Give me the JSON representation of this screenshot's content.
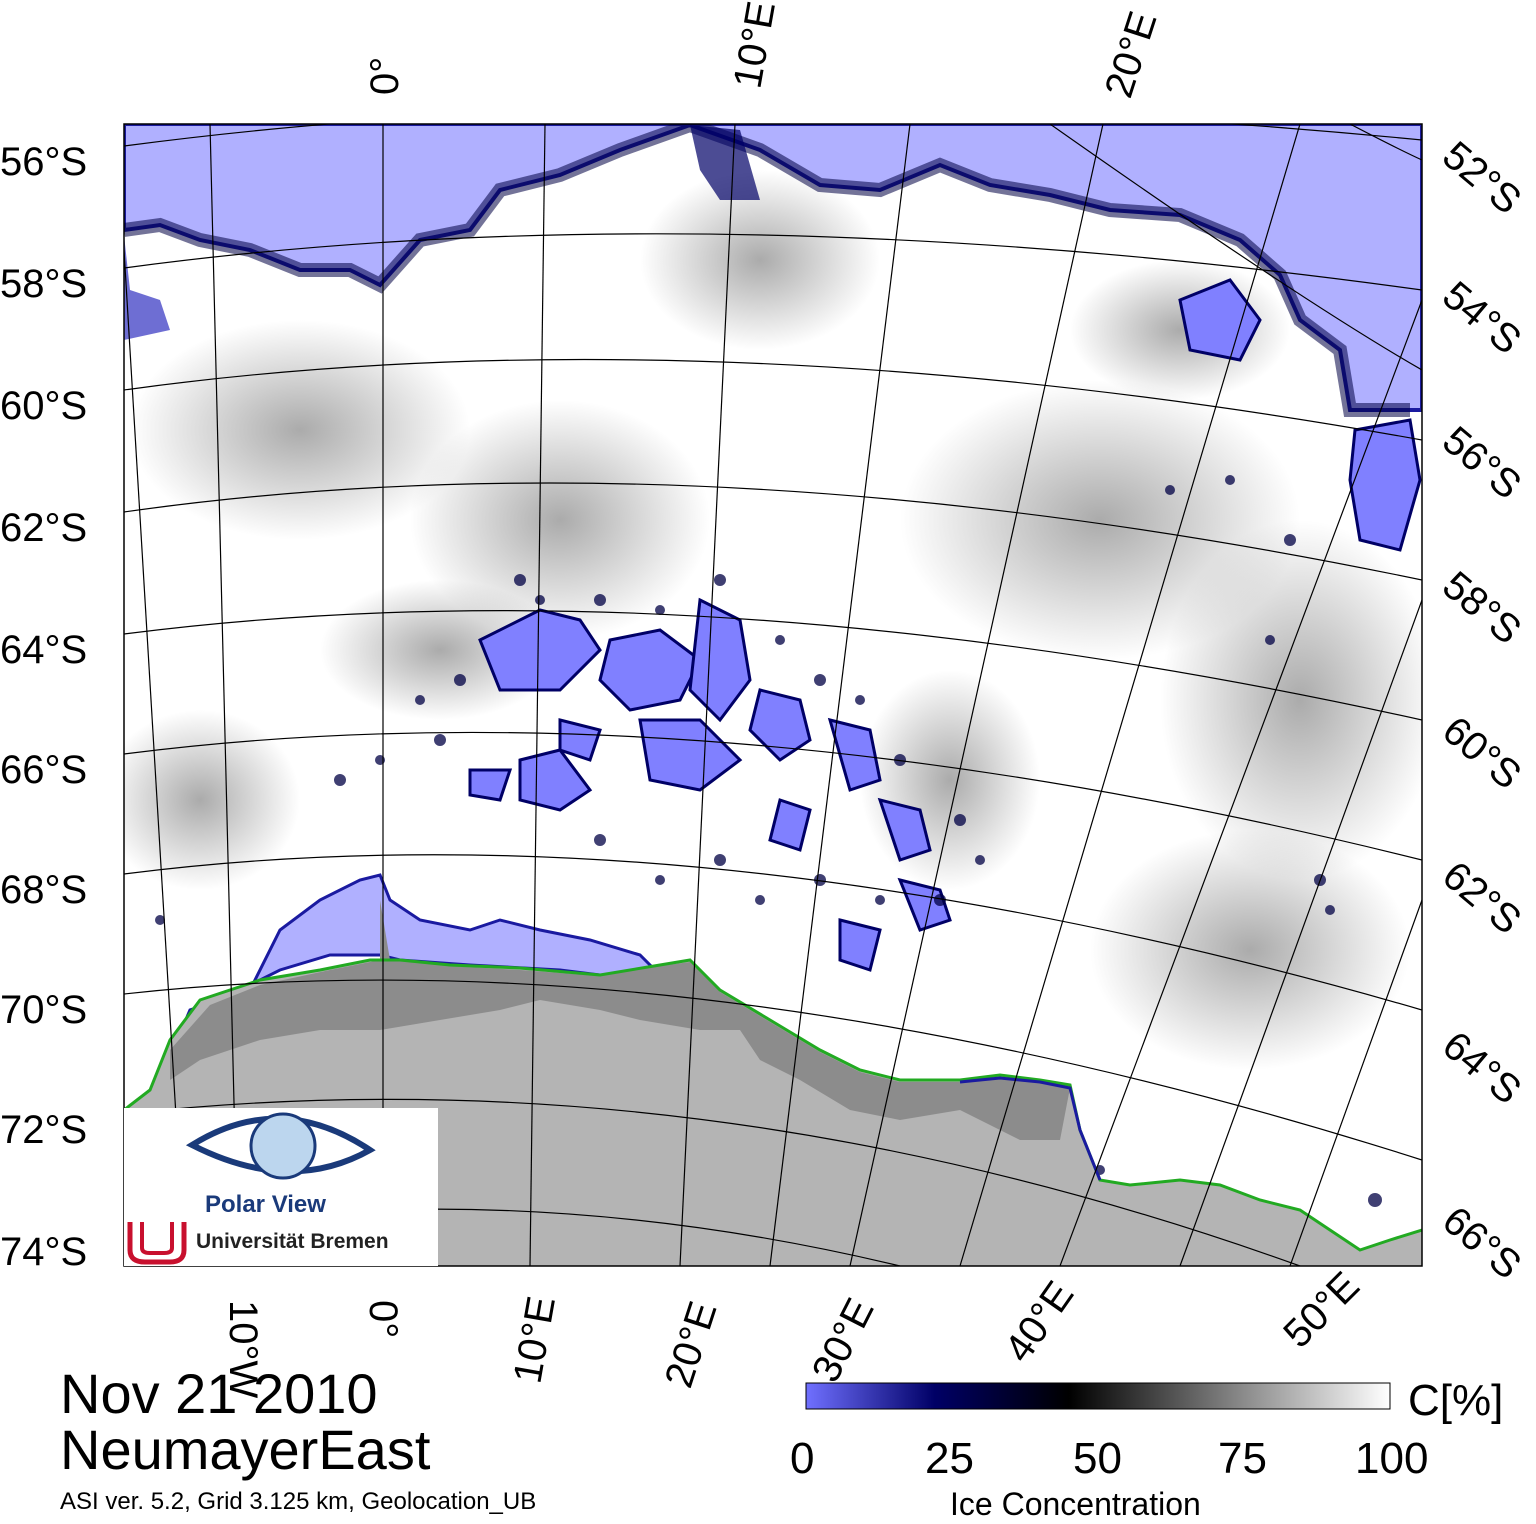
{
  "map": {
    "lat_labels_left": [
      "56°S",
      "58°S",
      "60°S",
      "62°S",
      "64°S",
      "66°S",
      "68°S",
      "70°S",
      "72°S",
      "74°S"
    ],
    "lat_labels_right": [
      "52°S",
      "54°S",
      "56°S",
      "58°S",
      "60°S",
      "62°S",
      "64°S",
      "66°S"
    ],
    "lon_labels_top": [
      "0°",
      "10°E",
      "20°E"
    ],
    "lon_labels_bottom": [
      "10°W",
      "0°",
      "10°E",
      "20°E",
      "30°E",
      "40°E",
      "50°E"
    ],
    "colors": {
      "open_water": "#b0b0ff",
      "land": "#b4b4b4",
      "ice_shelf": "#8c8c8c",
      "coastline": "#22aa22",
      "ice_edge": "#1a1aa0"
    }
  },
  "logo": {
    "name": "Polar View",
    "org": "Universität Bremen"
  },
  "title": {
    "date": "Nov 21 2010",
    "region": "NeumayerEast"
  },
  "subtitle": "ASI ver. 5.2,  Grid 3.125 km, Geolocation_UB",
  "colorbar": {
    "unit": "C[%]",
    "label": "Ice Concentration",
    "ticks": [
      "0",
      "25",
      "50",
      "75",
      "100"
    ],
    "colors": [
      "#7070ff",
      "#000066",
      "#000000",
      "#ffffff"
    ]
  }
}
